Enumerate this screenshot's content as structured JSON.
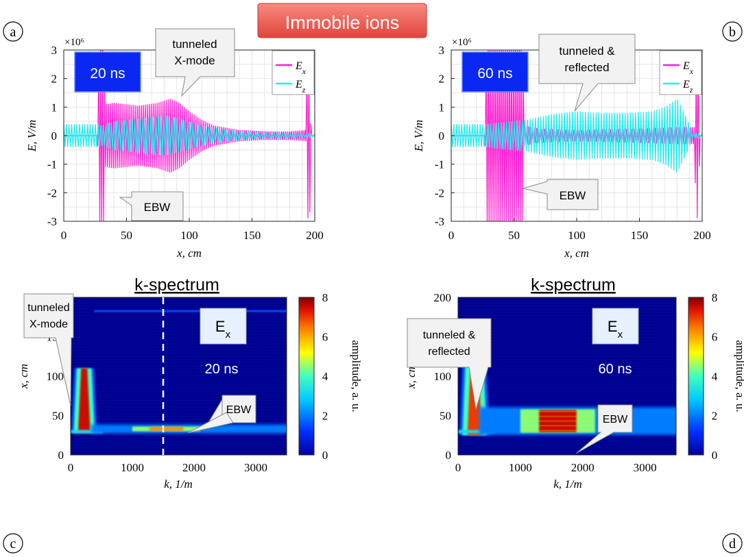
{
  "figure": {
    "title": "Immobile ions",
    "title_bg": "#f06a60",
    "panel_letters": [
      "a",
      "b",
      "c",
      "d"
    ],
    "colors": {
      "Ex": "#ff1fd2",
      "Ez": "#26ecec",
      "time_box": "#0a28f2",
      "label_box": "#e6f0ff"
    }
  },
  "chart_data": [
    {
      "id": "a",
      "type": "line",
      "time_label": "20 ns",
      "xlabel": "x, cm",
      "ylabel": "E, V/m",
      "y_multiplier": "×10⁶",
      "xlim": [
        0,
        200
      ],
      "ylim": [
        -3,
        3
      ],
      "xticks": [
        "0",
        "50",
        "100",
        "150",
        "200"
      ],
      "yticks": [
        "3",
        "2",
        "1",
        "0",
        "-1",
        "-2",
        "-3"
      ],
      "grid": true,
      "legend_position": "top-right",
      "series": [
        {
          "name": "Ex",
          "envelope": [
            [
              0,
              0
            ],
            [
              27,
              0
            ],
            [
              28,
              3
            ],
            [
              32,
              3
            ],
            [
              33,
              1.1
            ],
            [
              40,
              1.15
            ],
            [
              60,
              1.05
            ],
            [
              75,
              1.15
            ],
            [
              85,
              1.3
            ],
            [
              92,
              1.15
            ],
            [
              100,
              0.85
            ],
            [
              110,
              0.55
            ],
            [
              120,
              0.35
            ],
            [
              140,
              0.2
            ],
            [
              160,
              0.15
            ],
            [
              180,
              0.15
            ],
            [
              193,
              0.2
            ],
            [
              194,
              2.9
            ],
            [
              196,
              2.9
            ],
            [
              197,
              0
            ],
            [
              200,
              0
            ]
          ]
        },
        {
          "name": "Ez",
          "envelope": [
            [
              0,
              0.4
            ],
            [
              27,
              0.4
            ],
            [
              30,
              0.35
            ],
            [
              40,
              0.5
            ],
            [
              60,
              0.6
            ],
            [
              80,
              0.7
            ],
            [
              95,
              0.55
            ],
            [
              110,
              0.35
            ],
            [
              130,
              0.2
            ],
            [
              160,
              0.1
            ],
            [
              200,
              0.05
            ]
          ]
        }
      ],
      "annotations": [
        {
          "text": "tunneled\nX-mode"
        },
        {
          "text": "EBW"
        }
      ]
    },
    {
      "id": "b",
      "type": "line",
      "time_label": "60 ns",
      "xlabel": "x, cm",
      "ylabel": "E, V/m",
      "y_multiplier": "×10⁶",
      "xlim": [
        0,
        200
      ],
      "ylim": [
        -3,
        3
      ],
      "xticks": [
        "0",
        "50",
        "100",
        "150",
        "200"
      ],
      "yticks": [
        "3",
        "2",
        "1",
        "0",
        "-1",
        "-2",
        "-3"
      ],
      "grid": true,
      "legend_position": "top-right",
      "series": [
        {
          "name": "Ex",
          "envelope": [
            [
              0,
              0
            ],
            [
              27,
              0
            ],
            [
              28,
              3
            ],
            [
              57,
              3
            ],
            [
              58,
              0.35
            ],
            [
              70,
              0.25
            ],
            [
              100,
              0.2
            ],
            [
              150,
              0.25
            ],
            [
              180,
              0.3
            ],
            [
              194,
              0.3
            ],
            [
              195,
              2.9
            ],
            [
              197,
              2.9
            ],
            [
              198,
              0
            ],
            [
              200,
              0
            ]
          ]
        },
        {
          "name": "Ez",
          "envelope": [
            [
              0,
              0.4
            ],
            [
              27,
              0.4
            ],
            [
              35,
              0.45
            ],
            [
              60,
              0.55
            ],
            [
              80,
              0.75
            ],
            [
              100,
              0.85
            ],
            [
              120,
              0.8
            ],
            [
              140,
              0.8
            ],
            [
              160,
              0.85
            ],
            [
              170,
              1.0
            ],
            [
              180,
              1.3
            ],
            [
              188,
              0.6
            ],
            [
              192,
              0.1
            ],
            [
              200,
              0.05
            ]
          ]
        }
      ],
      "annotations": [
        {
          "text": "tunneled &\nreflected"
        },
        {
          "text": "EBW"
        }
      ]
    },
    {
      "id": "c",
      "type": "heatmap",
      "title": "k-spectrum",
      "field_label": "Eₓ",
      "time_label": "20 ns",
      "xlabel": "k, 1/m",
      "ylabel": "x, cm",
      "colorbar_label": "amplitude, a. u.",
      "xlim": [
        0,
        3500
      ],
      "ylim": [
        0,
        200
      ],
      "clim": [
        0,
        8
      ],
      "xticks": [
        "0",
        "1000",
        "2000",
        "3000"
      ],
      "yticks": [
        "0",
        "50",
        "100",
        "150"
      ],
      "cbar_ticks": [
        "0",
        "2",
        "4",
        "6",
        "8"
      ],
      "marker_line_k": 1500,
      "features": [
        {
          "label": "tunneled X-mode",
          "k": [
            120,
            320
          ],
          "x": [
            28,
            110
          ],
          "amplitude": 7.5
        },
        {
          "label": "EBW",
          "k": [
            1000,
            2100
          ],
          "x": [
            30,
            36
          ],
          "amplitude": 6.5
        },
        {
          "label": "horizontal band",
          "k": [
            380,
            3500
          ],
          "x": [
            181,
            184
          ],
          "amplitude": 1.5
        }
      ],
      "annotations": [
        {
          "text": "tunneled\nX-mode"
        },
        {
          "text": "EBW"
        }
      ]
    },
    {
      "id": "d",
      "type": "heatmap",
      "title": "k-spectrum",
      "field_label": "Eₓ",
      "time_label": "60 ns",
      "xlabel": "k, 1/m",
      "ylabel": "x, cm",
      "colorbar_label": "amplitude, a. u.",
      "xlim": [
        0,
        3500
      ],
      "ylim": [
        0,
        200
      ],
      "clim": [
        0,
        8
      ],
      "xticks": [
        "0",
        "1000",
        "2000",
        "3000"
      ],
      "yticks": [
        "0",
        "50",
        "100",
        "150",
        "200"
      ],
      "cbar_ticks": [
        "0",
        "2",
        "4",
        "6",
        "8"
      ],
      "features": [
        {
          "label": "tunneled & reflected",
          "k": [
            150,
            380
          ],
          "x": [
            25,
            130
          ],
          "amplitude": 7
        },
        {
          "label": "EBW",
          "k": [
            1000,
            2200
          ],
          "x": [
            28,
            58
          ],
          "amplitude": 7.5
        }
      ],
      "annotations": [
        {
          "text": "tunneled &\nreflected"
        },
        {
          "text": "EBW"
        }
      ]
    }
  ]
}
